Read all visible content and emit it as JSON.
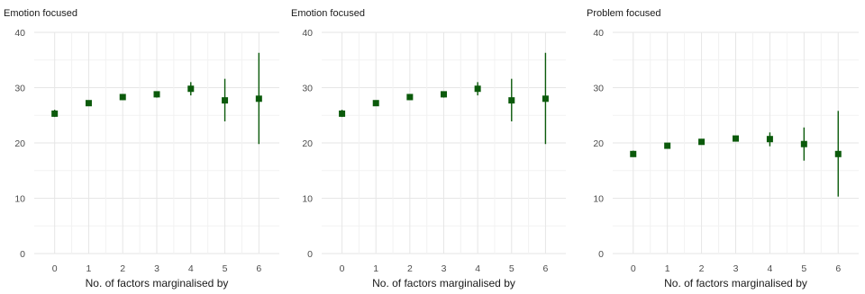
{
  "chart_data": [
    {
      "type": "scatter",
      "title": "Emotion focused",
      "xlabel": "No. of factors marginalised by",
      "ylabel": "",
      "x": [
        0,
        1,
        2,
        3,
        4,
        5,
        6
      ],
      "x_ticks": [
        "0",
        "1",
        "2",
        "3",
        "4",
        "5",
        "6"
      ],
      "y_ticks": [
        "0",
        "10",
        "20",
        "30",
        "40"
      ],
      "ylim": [
        0,
        40
      ],
      "grid": true,
      "series": [
        {
          "values": [
            25.3,
            27.2,
            28.3,
            28.8,
            29.8,
            27.7,
            28.0
          ],
          "lower": [
            24.7,
            26.8,
            27.8,
            28.2,
            28.6,
            23.9,
            19.8
          ],
          "upper": [
            26.0,
            27.6,
            28.8,
            29.3,
            31.0,
            31.6,
            36.3
          ],
          "color": "#0b5a0b"
        }
      ]
    },
    {
      "type": "scatter",
      "title": "Emotion focused",
      "xlabel": "No. of factors marginalised by",
      "ylabel": "",
      "x": [
        0,
        1,
        2,
        3,
        4,
        5,
        6
      ],
      "x_ticks": [
        "0",
        "1",
        "2",
        "3",
        "4",
        "5",
        "6"
      ],
      "y_ticks": [
        "0",
        "10",
        "20",
        "30",
        "40"
      ],
      "ylim": [
        0,
        40
      ],
      "grid": true,
      "series": [
        {
          "values": [
            25.3,
            27.2,
            28.3,
            28.8,
            29.8,
            27.7,
            28.0
          ],
          "lower": [
            24.7,
            26.8,
            27.8,
            28.2,
            28.6,
            23.9,
            19.8
          ],
          "upper": [
            26.0,
            27.6,
            28.8,
            29.3,
            31.0,
            31.6,
            36.3
          ],
          "color": "#0b5a0b"
        }
      ]
    },
    {
      "type": "scatter",
      "title": "Problem focused",
      "xlabel": "No. of factors marginalised by",
      "ylabel": "",
      "x": [
        0,
        1,
        2,
        3,
        4,
        5,
        6
      ],
      "x_ticks": [
        "0",
        "1",
        "2",
        "3",
        "4",
        "5",
        "6"
      ],
      "y_ticks": [
        "0",
        "10",
        "20",
        "30",
        "40"
      ],
      "ylim": [
        0,
        40
      ],
      "grid": true,
      "series": [
        {
          "values": [
            18.0,
            19.5,
            20.2,
            20.8,
            20.7,
            19.8,
            18.0
          ],
          "lower": [
            17.5,
            19.1,
            19.7,
            20.3,
            19.4,
            16.8,
            10.3
          ],
          "upper": [
            18.6,
            19.9,
            20.7,
            21.3,
            21.9,
            22.8,
            25.8
          ],
          "color": "#0b5a0b"
        }
      ]
    }
  ]
}
